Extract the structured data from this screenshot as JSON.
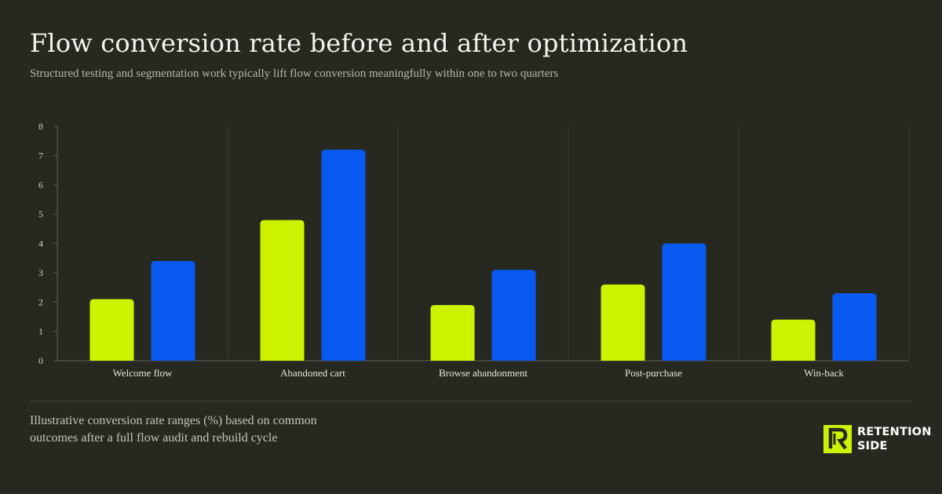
{
  "header": {
    "title": "Flow conversion rate before and after optimization",
    "subtitle": "Structured testing and segmentation work typically lift flow conversion meaningfully within one to two quarters"
  },
  "footer": {
    "note": "Illustrative conversion rate ranges (%) based on common outcomes after a full flow audit and rebuild cycle",
    "logo_line1": "RETENTION",
    "logo_line2": "SIDE",
    "logo_icon": "retention-side-logo-icon"
  },
  "chart_data": {
    "type": "bar",
    "categories": [
      "Welcome flow",
      "Abandoned cart",
      "Browse abandonment",
      "Post-purchase",
      "Win-back"
    ],
    "series": [
      {
        "values": [
          2.1,
          4.8,
          1.9,
          2.6,
          1.4
        ],
        "color": "#ccf200"
      },
      {
        "values": [
          3.4,
          7.2,
          3.1,
          4.0,
          2.3
        ],
        "color": "#0859f0"
      }
    ],
    "yticks": [
      0,
      1,
      2,
      3,
      4,
      5,
      6,
      7,
      8
    ],
    "ylim": [
      0,
      8
    ],
    "grid": "vertical separators between categories",
    "legend": "none"
  },
  "colors": {
    "background": "#272920",
    "accent_lime": "#ccf200",
    "accent_blue": "#0859f0"
  }
}
